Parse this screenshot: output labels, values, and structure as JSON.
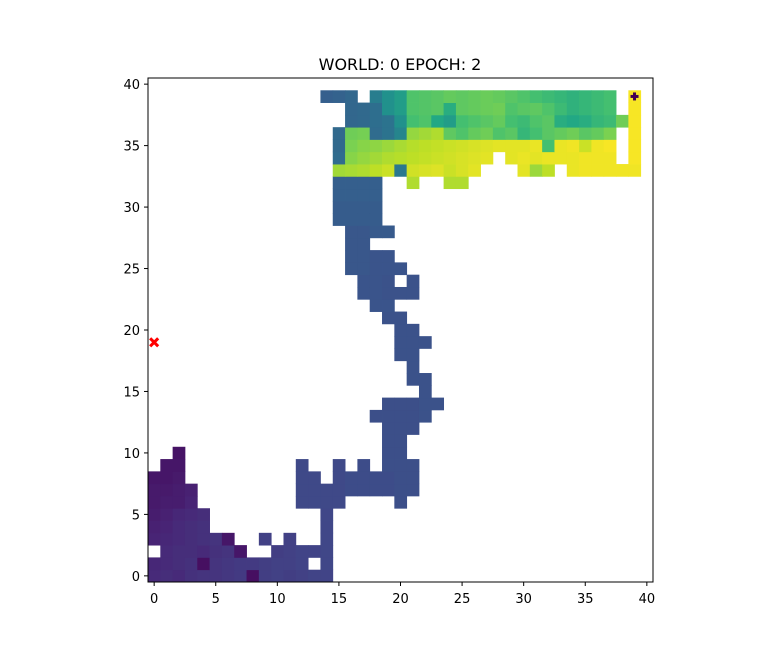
{
  "chart_data": {
    "type": "heatmap",
    "title": "WORLD: 0 EPOCH: 2",
    "xlabel": "",
    "ylabel": "",
    "xlim": [
      -0.5,
      40.5
    ],
    "ylim": [
      -0.5,
      40.5
    ],
    "x_ticks": [
      0,
      5,
      10,
      15,
      20,
      25,
      30,
      35,
      40
    ],
    "y_ticks": [
      0,
      5,
      10,
      15,
      20,
      25,
      30,
      35,
      40
    ],
    "x_tick_labels": [
      "0",
      "5",
      "10",
      "15",
      "20",
      "25",
      "30",
      "35",
      "40"
    ],
    "y_tick_labels": [
      "0",
      "5",
      "10",
      "15",
      "20",
      "25",
      "30",
      "35",
      "40"
    ],
    "grid": false,
    "colormap": "viridis",
    "value_range": [
      0,
      1
    ],
    "cells": [
      [
        0,
        0,
        0.12
      ],
      [
        1,
        0,
        0.13
      ],
      [
        2,
        0,
        0.12
      ],
      [
        3,
        0,
        0.14
      ],
      [
        4,
        0,
        0.15
      ],
      [
        5,
        0,
        0.15
      ],
      [
        6,
        0,
        0.16
      ],
      [
        7,
        0,
        0.17
      ],
      [
        8,
        0,
        0.04
      ],
      [
        9,
        0,
        0.18
      ],
      [
        10,
        0,
        0.19
      ],
      [
        11,
        0,
        0.18
      ],
      [
        12,
        0,
        0.19
      ],
      [
        13,
        0,
        0.2
      ],
      [
        14,
        0,
        0.2
      ],
      [
        0,
        1,
        0.11
      ],
      [
        1,
        1,
        0.12
      ],
      [
        2,
        1,
        0.13
      ],
      [
        3,
        1,
        0.14
      ],
      [
        4,
        1,
        0.04
      ],
      [
        5,
        1,
        0.15
      ],
      [
        6,
        1,
        0.16
      ],
      [
        7,
        1,
        0.17
      ],
      [
        8,
        1,
        0.17
      ],
      [
        9,
        1,
        0.18
      ],
      [
        10,
        1,
        0.19
      ],
      [
        11,
        1,
        0.19
      ],
      [
        12,
        1,
        0.2
      ],
      [
        14,
        1,
        0.21
      ],
      [
        1,
        2,
        0.12
      ],
      [
        2,
        2,
        0.13
      ],
      [
        3,
        2,
        0.13
      ],
      [
        4,
        2,
        0.12
      ],
      [
        5,
        2,
        0.14
      ],
      [
        6,
        2,
        0.15
      ],
      [
        7,
        2,
        0.06
      ],
      [
        10,
        2,
        0.18
      ],
      [
        11,
        2,
        0.19
      ],
      [
        12,
        2,
        0.2
      ],
      [
        13,
        2,
        0.2
      ],
      [
        14,
        2,
        0.21
      ],
      [
        0,
        3,
        0.1
      ],
      [
        1,
        3,
        0.11
      ],
      [
        2,
        3,
        0.12
      ],
      [
        3,
        3,
        0.13
      ],
      [
        4,
        3,
        0.14
      ],
      [
        5,
        3,
        0.15
      ],
      [
        6,
        3,
        0.06
      ],
      [
        9,
        3,
        0.19
      ],
      [
        11,
        3,
        0.19
      ],
      [
        14,
        3,
        0.21
      ],
      [
        0,
        4,
        0.09
      ],
      [
        1,
        4,
        0.1
      ],
      [
        2,
        4,
        0.12
      ],
      [
        3,
        4,
        0.13
      ],
      [
        4,
        4,
        0.14
      ],
      [
        14,
        4,
        0.21
      ],
      [
        0,
        5,
        0.08
      ],
      [
        1,
        5,
        0.09
      ],
      [
        2,
        5,
        0.11
      ],
      [
        3,
        5,
        0.12
      ],
      [
        4,
        5,
        0.13
      ],
      [
        14,
        5,
        0.21
      ],
      [
        0,
        6,
        0.07
      ],
      [
        1,
        6,
        0.08
      ],
      [
        2,
        6,
        0.08
      ],
      [
        3,
        6,
        0.1
      ],
      [
        12,
        6,
        0.22
      ],
      [
        13,
        6,
        0.22
      ],
      [
        14,
        6,
        0.22
      ],
      [
        15,
        6,
        0.22
      ],
      [
        20,
        6,
        0.24
      ],
      [
        0,
        7,
        0.07
      ],
      [
        1,
        7,
        0.07
      ],
      [
        2,
        7,
        0.08
      ],
      [
        3,
        7,
        0.09
      ],
      [
        12,
        7,
        0.22
      ],
      [
        13,
        7,
        0.22
      ],
      [
        14,
        7,
        0.22
      ],
      [
        15,
        7,
        0.22
      ],
      [
        16,
        7,
        0.23
      ],
      [
        17,
        7,
        0.23
      ],
      [
        18,
        7,
        0.23
      ],
      [
        19,
        7,
        0.23
      ],
      [
        20,
        7,
        0.24
      ],
      [
        21,
        7,
        0.24
      ],
      [
        0,
        8,
        0.06
      ],
      [
        1,
        8,
        0.06
      ],
      [
        2,
        8,
        0.07
      ],
      [
        12,
        8,
        0.22
      ],
      [
        13,
        8,
        0.22
      ],
      [
        15,
        8,
        0.22
      ],
      [
        16,
        8,
        0.23
      ],
      [
        17,
        8,
        0.23
      ],
      [
        18,
        8,
        0.23
      ],
      [
        19,
        8,
        0.23
      ],
      [
        20,
        8,
        0.24
      ],
      [
        21,
        8,
        0.24
      ],
      [
        1,
        9,
        0.06
      ],
      [
        2,
        9,
        0.06
      ],
      [
        12,
        9,
        0.22
      ],
      [
        15,
        9,
        0.22
      ],
      [
        17,
        9,
        0.23
      ],
      [
        19,
        9,
        0.24
      ],
      [
        20,
        9,
        0.24
      ],
      [
        21,
        9,
        0.24
      ],
      [
        2,
        10,
        0.05
      ],
      [
        19,
        10,
        0.24
      ],
      [
        20,
        10,
        0.24
      ],
      [
        19,
        11,
        0.24
      ],
      [
        20,
        11,
        0.24
      ],
      [
        19,
        12,
        0.24
      ],
      [
        20,
        12,
        0.24
      ],
      [
        21,
        12,
        0.24
      ],
      [
        18,
        13,
        0.24
      ],
      [
        19,
        13,
        0.24
      ],
      [
        20,
        13,
        0.24
      ],
      [
        21,
        13,
        0.24
      ],
      [
        22,
        13,
        0.25
      ],
      [
        19,
        14,
        0.24
      ],
      [
        20,
        14,
        0.24
      ],
      [
        21,
        14,
        0.24
      ],
      [
        22,
        14,
        0.25
      ],
      [
        23,
        14,
        0.25
      ],
      [
        22,
        15,
        0.25
      ],
      [
        21,
        16,
        0.25
      ],
      [
        22,
        16,
        0.25
      ],
      [
        21,
        17,
        0.25
      ],
      [
        20,
        18,
        0.25
      ],
      [
        21,
        18,
        0.25
      ],
      [
        20,
        19,
        0.25
      ],
      [
        21,
        19,
        0.25
      ],
      [
        22,
        19,
        0.25
      ],
      [
        20,
        20,
        0.25
      ],
      [
        21,
        20,
        0.25
      ],
      [
        19,
        21,
        0.25
      ],
      [
        20,
        21,
        0.25
      ],
      [
        18,
        22,
        0.26
      ],
      [
        19,
        22,
        0.26
      ],
      [
        17,
        23,
        0.26
      ],
      [
        18,
        23,
        0.26
      ],
      [
        19,
        23,
        0.25
      ],
      [
        20,
        23,
        0.25
      ],
      [
        21,
        23,
        0.25
      ],
      [
        17,
        24,
        0.26
      ],
      [
        18,
        24,
        0.26
      ],
      [
        19,
        24,
        0.25
      ],
      [
        21,
        24,
        0.25
      ],
      [
        16,
        25,
        0.27
      ],
      [
        17,
        25,
        0.27
      ],
      [
        18,
        25,
        0.26
      ],
      [
        19,
        25,
        0.26
      ],
      [
        20,
        25,
        0.26
      ],
      [
        16,
        26,
        0.27
      ],
      [
        17,
        26,
        0.27
      ],
      [
        18,
        26,
        0.26
      ],
      [
        19,
        26,
        0.26
      ],
      [
        16,
        27,
        0.27
      ],
      [
        17,
        27,
        0.27
      ],
      [
        16,
        28,
        0.27
      ],
      [
        17,
        28,
        0.27
      ],
      [
        18,
        28,
        0.28
      ],
      [
        19,
        28,
        0.28
      ],
      [
        15,
        29,
        0.29
      ],
      [
        16,
        29,
        0.29
      ],
      [
        17,
        29,
        0.29
      ],
      [
        18,
        29,
        0.29
      ],
      [
        15,
        30,
        0.29
      ],
      [
        16,
        30,
        0.29
      ],
      [
        17,
        30,
        0.29
      ],
      [
        18,
        30,
        0.29
      ],
      [
        15,
        31,
        0.3
      ],
      [
        16,
        31,
        0.3
      ],
      [
        17,
        31,
        0.3
      ],
      [
        18,
        31,
        0.3
      ],
      [
        15,
        32,
        0.3
      ],
      [
        16,
        32,
        0.3
      ],
      [
        17,
        32,
        0.3
      ],
      [
        18,
        32,
        0.3
      ],
      [
        21,
        32,
        0.88
      ],
      [
        24,
        32,
        0.88
      ],
      [
        25,
        32,
        0.88
      ],
      [
        15,
        33,
        0.86
      ],
      [
        16,
        33,
        0.87
      ],
      [
        17,
        33,
        0.88
      ],
      [
        18,
        33,
        0.9
      ],
      [
        19,
        33,
        0.92
      ],
      [
        20,
        33,
        0.4
      ],
      [
        21,
        33,
        0.93
      ],
      [
        22,
        33,
        0.94
      ],
      [
        23,
        33,
        0.95
      ],
      [
        24,
        33,
        0.92
      ],
      [
        25,
        33,
        0.94
      ],
      [
        26,
        33,
        0.96
      ],
      [
        30,
        33,
        0.96
      ],
      [
        31,
        33,
        0.85
      ],
      [
        32,
        33,
        0.9
      ],
      [
        34,
        33,
        0.97
      ],
      [
        35,
        33,
        0.98
      ],
      [
        36,
        33,
        0.98
      ],
      [
        37,
        33,
        0.98
      ],
      [
        38,
        33,
        0.98
      ],
      [
        39,
        33,
        0.98
      ],
      [
        15,
        34,
        0.35
      ],
      [
        16,
        34,
        0.82
      ],
      [
        17,
        34,
        0.84
      ],
      [
        18,
        34,
        0.86
      ],
      [
        19,
        34,
        0.88
      ],
      [
        20,
        34,
        0.89
      ],
      [
        21,
        34,
        0.9
      ],
      [
        22,
        34,
        0.91
      ],
      [
        23,
        34,
        0.92
      ],
      [
        24,
        34,
        0.93
      ],
      [
        25,
        34,
        0.94
      ],
      [
        26,
        34,
        0.95
      ],
      [
        27,
        34,
        0.96
      ],
      [
        29,
        34,
        0.96
      ],
      [
        30,
        34,
        0.97
      ],
      [
        31,
        34,
        0.96
      ],
      [
        32,
        34,
        0.97
      ],
      [
        33,
        34,
        0.97
      ],
      [
        34,
        34,
        0.97
      ],
      [
        35,
        34,
        0.98
      ],
      [
        36,
        34,
        0.98
      ],
      [
        37,
        34,
        0.98
      ],
      [
        39,
        34,
        0.99
      ],
      [
        15,
        35,
        0.34
      ],
      [
        16,
        35,
        0.8
      ],
      [
        17,
        35,
        0.82
      ],
      [
        18,
        35,
        0.83
      ],
      [
        19,
        35,
        0.85
      ],
      [
        20,
        35,
        0.87
      ],
      [
        21,
        35,
        0.89
      ],
      [
        22,
        35,
        0.9
      ],
      [
        23,
        35,
        0.91
      ],
      [
        24,
        35,
        0.92
      ],
      [
        25,
        35,
        0.93
      ],
      [
        26,
        35,
        0.94
      ],
      [
        27,
        35,
        0.95
      ],
      [
        28,
        35,
        0.96
      ],
      [
        29,
        35,
        0.96
      ],
      [
        30,
        35,
        0.96
      ],
      [
        31,
        35,
        0.97
      ],
      [
        32,
        35,
        0.7
      ],
      [
        33,
        35,
        0.97
      ],
      [
        34,
        35,
        0.98
      ],
      [
        35,
        35,
        0.92
      ],
      [
        36,
        35,
        0.98
      ],
      [
        37,
        35,
        0.99
      ],
      [
        39,
        35,
        0.99
      ],
      [
        15,
        36,
        0.34
      ],
      [
        16,
        36,
        0.78
      ],
      [
        17,
        36,
        0.79
      ],
      [
        18,
        36,
        0.35
      ],
      [
        19,
        36,
        0.38
      ],
      [
        20,
        36,
        0.45
      ],
      [
        21,
        36,
        0.84
      ],
      [
        22,
        36,
        0.86
      ],
      [
        23,
        36,
        0.88
      ],
      [
        24,
        36,
        0.75
      ],
      [
        25,
        36,
        0.72
      ],
      [
        26,
        36,
        0.76
      ],
      [
        27,
        36,
        0.78
      ],
      [
        28,
        36,
        0.72
      ],
      [
        29,
        36,
        0.74
      ],
      [
        30,
        36,
        0.66
      ],
      [
        31,
        36,
        0.7
      ],
      [
        32,
        36,
        0.74
      ],
      [
        33,
        36,
        0.76
      ],
      [
        34,
        36,
        0.78
      ],
      [
        35,
        36,
        0.74
      ],
      [
        36,
        36,
        0.76
      ],
      [
        37,
        36,
        0.8
      ],
      [
        39,
        36,
        0.99
      ],
      [
        16,
        37,
        0.33
      ],
      [
        17,
        37,
        0.34
      ],
      [
        18,
        37,
        0.36
      ],
      [
        19,
        37,
        0.38
      ],
      [
        20,
        37,
        0.5
      ],
      [
        21,
        37,
        0.7
      ],
      [
        22,
        37,
        0.72
      ],
      [
        23,
        37,
        0.6
      ],
      [
        24,
        37,
        0.55
      ],
      [
        25,
        37,
        0.7
      ],
      [
        26,
        37,
        0.72
      ],
      [
        27,
        37,
        0.74
      ],
      [
        28,
        37,
        0.76
      ],
      [
        29,
        37,
        0.7
      ],
      [
        30,
        37,
        0.68
      ],
      [
        31,
        37,
        0.72
      ],
      [
        32,
        37,
        0.74
      ],
      [
        33,
        37,
        0.62
      ],
      [
        34,
        37,
        0.6
      ],
      [
        35,
        37,
        0.62
      ],
      [
        36,
        37,
        0.66
      ],
      [
        37,
        37,
        0.68
      ],
      [
        38,
        37,
        0.78
      ],
      [
        39,
        37,
        0.99
      ],
      [
        16,
        38,
        0.33
      ],
      [
        17,
        38,
        0.34
      ],
      [
        18,
        38,
        0.36
      ],
      [
        19,
        38,
        0.5
      ],
      [
        20,
        38,
        0.55
      ],
      [
        21,
        38,
        0.72
      ],
      [
        22,
        38,
        0.73
      ],
      [
        23,
        38,
        0.74
      ],
      [
        24,
        38,
        0.62
      ],
      [
        25,
        38,
        0.75
      ],
      [
        26,
        38,
        0.76
      ],
      [
        27,
        38,
        0.77
      ],
      [
        28,
        38,
        0.78
      ],
      [
        29,
        38,
        0.72
      ],
      [
        30,
        38,
        0.74
      ],
      [
        31,
        38,
        0.75
      ],
      [
        32,
        38,
        0.72
      ],
      [
        33,
        38,
        0.68
      ],
      [
        34,
        38,
        0.64
      ],
      [
        35,
        38,
        0.66
      ],
      [
        36,
        38,
        0.68
      ],
      [
        37,
        38,
        0.7
      ],
      [
        39,
        38,
        0.99
      ],
      [
        14,
        39,
        0.3
      ],
      [
        15,
        39,
        0.31
      ],
      [
        16,
        39,
        0.33
      ],
      [
        18,
        39,
        0.42
      ],
      [
        19,
        39,
        0.5
      ],
      [
        20,
        39,
        0.55
      ],
      [
        21,
        39,
        0.72
      ],
      [
        22,
        39,
        0.73
      ],
      [
        23,
        39,
        0.74
      ],
      [
        24,
        39,
        0.76
      ],
      [
        25,
        39,
        0.75
      ],
      [
        26,
        39,
        0.76
      ],
      [
        27,
        39,
        0.77
      ],
      [
        28,
        39,
        0.76
      ],
      [
        29,
        39,
        0.74
      ],
      [
        30,
        39,
        0.72
      ],
      [
        31,
        39,
        0.7
      ],
      [
        32,
        39,
        0.68
      ],
      [
        33,
        39,
        0.66
      ],
      [
        34,
        39,
        0.64
      ],
      [
        35,
        39,
        0.66
      ],
      [
        36,
        39,
        0.68
      ],
      [
        37,
        39,
        0.7
      ],
      [
        39,
        39,
        0.99
      ]
    ],
    "markers": [
      {
        "kind": "x-marker",
        "x": 0,
        "y": 19,
        "color": "#ff0000"
      },
      {
        "kind": "plus-marker",
        "x": 39,
        "y": 39,
        "color": "#440154"
      }
    ]
  }
}
